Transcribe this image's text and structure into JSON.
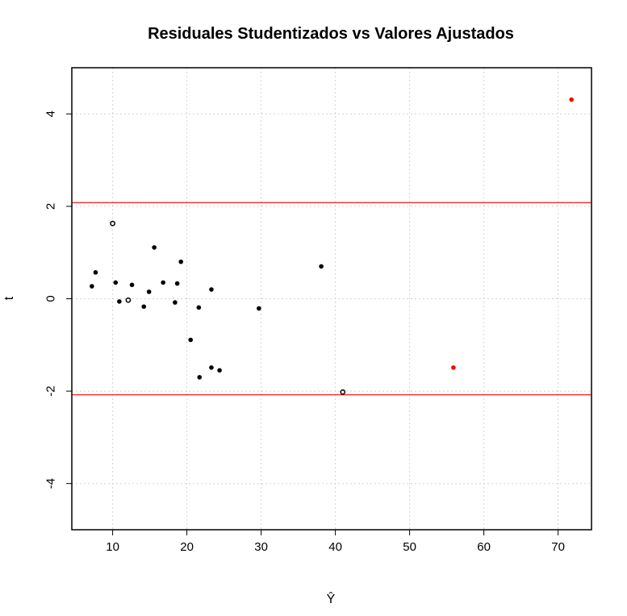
{
  "chart_data": {
    "type": "scatter",
    "title": "Residuales Studentizados vs Valores Ajustados",
    "xlabel": "Ŷ",
    "ylabel": "t",
    "xlim": [
      4.5,
      74.5
    ],
    "ylim": [
      -5,
      5
    ],
    "x_ticks": [
      10,
      20,
      30,
      40,
      50,
      60,
      70
    ],
    "y_ticks": [
      -4,
      -2,
      0,
      2,
      4
    ],
    "grid": true,
    "reference_lines": {
      "y": [
        2.08,
        -2.08
      ],
      "color": "#ff0000"
    },
    "colors": {
      "point": "#000000",
      "highlight": "#ff0000",
      "grid": "#d3d3d3"
    },
    "points": [
      {
        "x": 7.2,
        "y": 0.27,
        "style": "filled"
      },
      {
        "x": 7.7,
        "y": 0.57,
        "style": "filled"
      },
      {
        "x": 10.0,
        "y": 1.63,
        "style": "open"
      },
      {
        "x": 10.4,
        "y": 0.35,
        "style": "filled"
      },
      {
        "x": 10.9,
        "y": -0.06,
        "style": "filled"
      },
      {
        "x": 12.1,
        "y": -0.03,
        "style": "open"
      },
      {
        "x": 12.6,
        "y": 0.3,
        "style": "filled"
      },
      {
        "x": 14.2,
        "y": -0.17,
        "style": "filled"
      },
      {
        "x": 14.9,
        "y": 0.15,
        "style": "filled"
      },
      {
        "x": 15.6,
        "y": 1.11,
        "style": "filled"
      },
      {
        "x": 16.8,
        "y": 0.35,
        "style": "filled"
      },
      {
        "x": 18.4,
        "y": -0.08,
        "style": "filled"
      },
      {
        "x": 18.7,
        "y": 0.33,
        "style": "filled"
      },
      {
        "x": 19.2,
        "y": 0.8,
        "style": "filled"
      },
      {
        "x": 20.5,
        "y": -0.89,
        "style": "filled"
      },
      {
        "x": 21.6,
        "y": -0.19,
        "style": "filled"
      },
      {
        "x": 21.7,
        "y": -1.7,
        "style": "filled"
      },
      {
        "x": 23.3,
        "y": 0.2,
        "style": "filled"
      },
      {
        "x": 23.3,
        "y": -1.49,
        "style": "filled"
      },
      {
        "x": 24.4,
        "y": -1.55,
        "style": "filled"
      },
      {
        "x": 29.7,
        "y": -0.21,
        "style": "filled"
      },
      {
        "x": 38.1,
        "y": 0.7,
        "style": "filled"
      },
      {
        "x": 41.0,
        "y": -2.02,
        "style": "open"
      },
      {
        "x": 55.9,
        "y": -1.49,
        "style": "highlight"
      },
      {
        "x": 71.8,
        "y": 4.31,
        "style": "highlight"
      }
    ]
  }
}
